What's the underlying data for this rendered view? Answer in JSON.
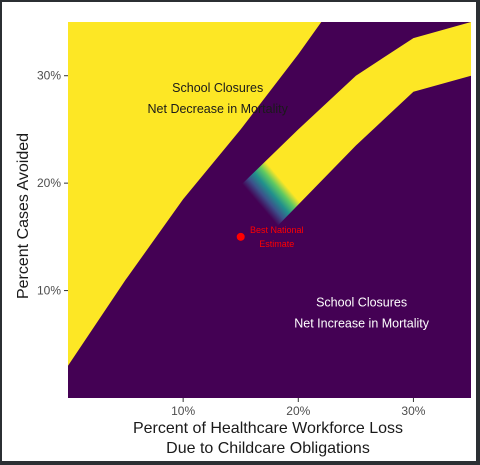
{
  "chart_data": {
    "type": "heatmap",
    "title": "",
    "xlabel_lines": [
      "Percent of Healthcare Workforce Loss",
      "Due to Childcare Obligations"
    ],
    "ylabel": "Percent Cases Avoided",
    "xlim": [
      0,
      35
    ],
    "ylim": [
      0,
      35
    ],
    "x_ticks": [
      10,
      20,
      30
    ],
    "x_tick_labels": [
      "10%",
      "20%",
      "30%"
    ],
    "y_ticks": [
      10,
      20,
      30
    ],
    "y_tick_labels": [
      "10%",
      "20%",
      "30%"
    ],
    "grid": false,
    "colormap": [
      "#440154",
      "#3b528b",
      "#21918c",
      "#5ec962",
      "#fde725"
    ],
    "regions": [
      {
        "lines": [
          "School Closures",
          "Net Decrease in Mortality"
        ],
        "color": "#1a1a1a",
        "at": [
          13,
          28.5
        ]
      },
      {
        "lines": [
          "School Closures",
          "Net Increase in Mortality"
        ],
        "color": "#ffffff",
        "at": [
          25.5,
          8.5
        ]
      }
    ],
    "points": [
      {
        "x": 15,
        "y": 15,
        "label_lines": [
          "Best National",
          "Estimate"
        ],
        "color": "#ff0000"
      }
    ]
  }
}
